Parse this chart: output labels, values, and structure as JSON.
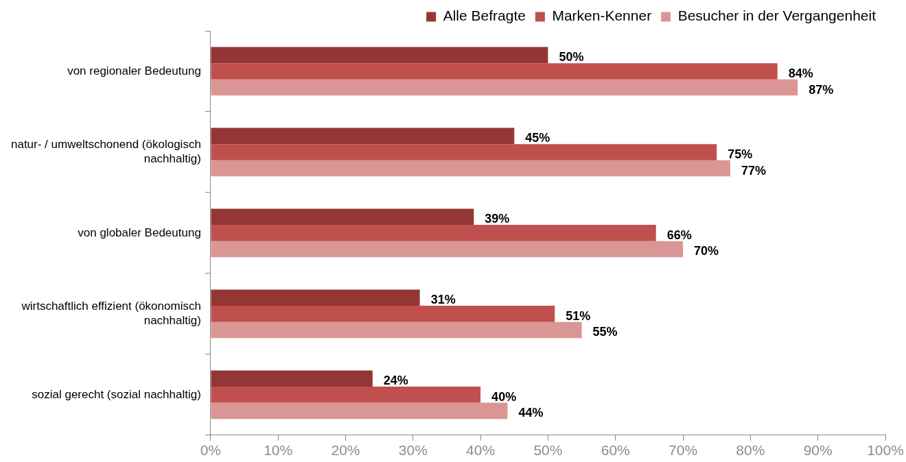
{
  "chart_data": {
    "type": "bar",
    "orientation": "horizontal",
    "legend": "top",
    "categories": [
      "von regionaler Bedeutung",
      "natur- / umweltschonend (ökologisch nachhaltig)",
      "von globaler Bedeutung",
      "wirtschaftlich effizient (ökonomisch nachhaltig)",
      "sozial gerecht (sozial nachhaltig)"
    ],
    "series": [
      {
        "name": "Alle Befragte",
        "color": "#943634",
        "values": [
          50,
          45,
          39,
          31,
          24
        ],
        "value_labels": [
          "50%",
          "45%",
          "39%",
          "31%",
          "24%"
        ]
      },
      {
        "name": "Marken-Kenner",
        "color": "#c0504d",
        "values": [
          84,
          75,
          66,
          51,
          40
        ],
        "value_labels": [
          "84%",
          "75%",
          "66%",
          "51%",
          "40%"
        ]
      },
      {
        "name": "Besucher in der Vergangenheit",
        "color": "#d99694",
        "values": [
          87,
          77,
          70,
          55,
          44
        ],
        "value_labels": [
          "87%",
          "77%",
          "70%",
          "55%",
          "44%"
        ]
      }
    ],
    "xlim": [
      0,
      100
    ],
    "xticks": [
      {
        "value": 0,
        "label": "0%"
      },
      {
        "value": 10,
        "label": "10%"
      },
      {
        "value": 20,
        "label": "20%"
      },
      {
        "value": 30,
        "label": "30%"
      },
      {
        "value": 40,
        "label": "40%"
      },
      {
        "value": 50,
        "label": "50%"
      },
      {
        "value": 60,
        "label": "60%"
      },
      {
        "value": 70,
        "label": "70%"
      },
      {
        "value": 80,
        "label": "80%"
      },
      {
        "value": 90,
        "label": "90%"
      },
      {
        "value": 100,
        "label": "100%"
      }
    ]
  }
}
